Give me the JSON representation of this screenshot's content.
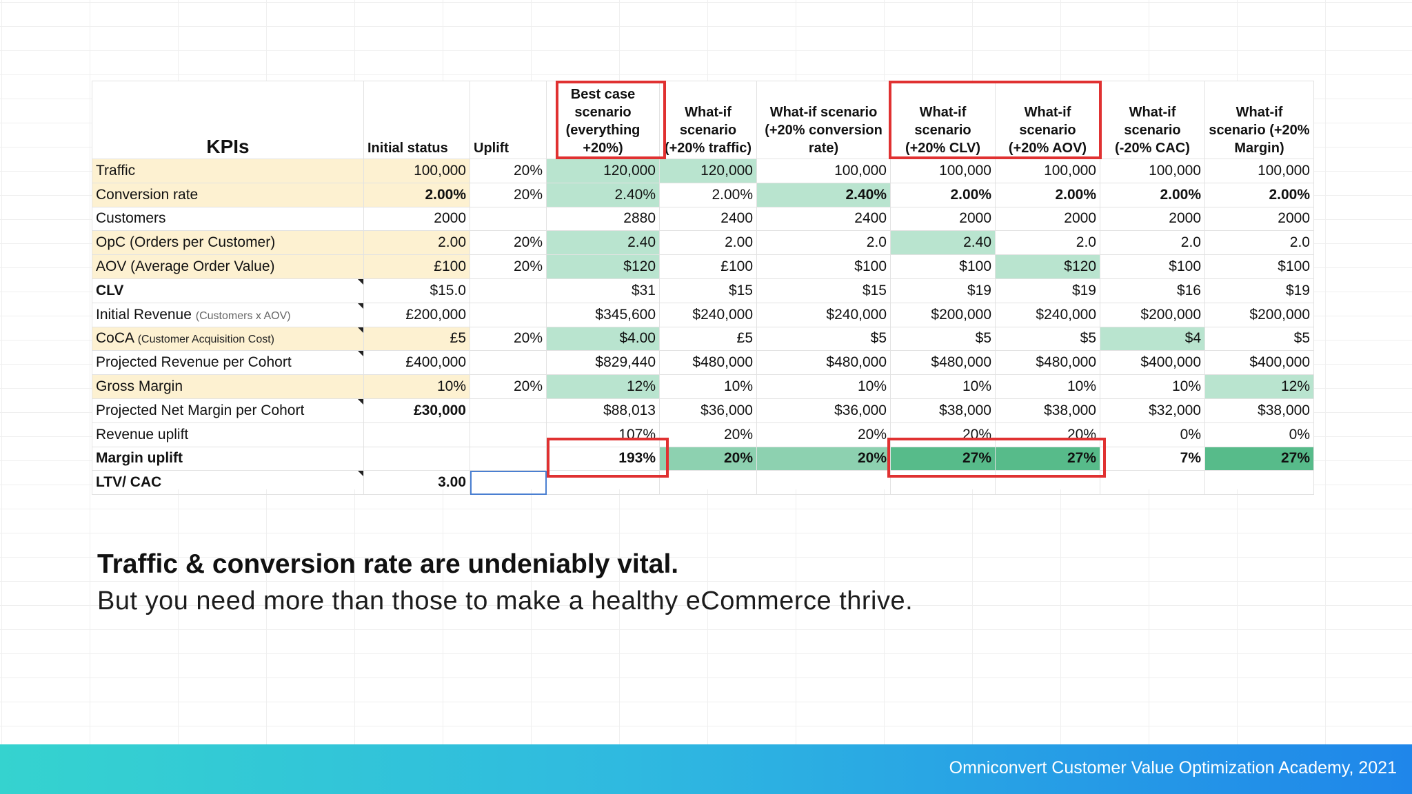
{
  "table": {
    "headers": [
      "KPIs",
      "Initial status",
      "Uplift",
      "Best case scenario (everything +20%)",
      "What-if scenario (+20% traffic)",
      "What-if scenario (+20% conversion rate)",
      "What-if scenario (+20% CLV)",
      "What-if scenario (+20% AOV)",
      "What-if scenario (-20% CAC)",
      "What-if scenario (+20% Margin)"
    ],
    "rows": [
      {
        "label": "Traffic",
        "note": "",
        "cells": [
          "100,000",
          "20%",
          "120,000",
          "120,000",
          "100,000",
          "100,000",
          "100,000",
          "100,000",
          "100,000"
        ]
      },
      {
        "label": "Conversion rate",
        "note": "",
        "cells": [
          "2.00%",
          "20%",
          "2.40%",
          "2.00%",
          "2.40%",
          "2.00%",
          "2.00%",
          "2.00%",
          "2.00%"
        ]
      },
      {
        "label": "Customers",
        "note": "",
        "cells": [
          "2000",
          "",
          "2880",
          "2400",
          "2400",
          "2000",
          "2000",
          "2000",
          "2000"
        ]
      },
      {
        "label": "OpC (Orders per Customer)",
        "note": "",
        "cells": [
          "2.00",
          "20%",
          "2.40",
          "2.00",
          "2.0",
          "2.40",
          "2.0",
          "2.0",
          "2.0"
        ]
      },
      {
        "label": "AOV (Average Order Value)",
        "note": "",
        "cells": [
          "£100",
          "20%",
          "$120",
          "£100",
          "$100",
          "$100",
          "$120",
          "$100",
          "$100"
        ]
      },
      {
        "label": "CLV",
        "note": "",
        "cells": [
          "$15.0",
          "",
          "$31",
          "$15",
          "$15",
          "$19",
          "$19",
          "$16",
          "$19"
        ]
      },
      {
        "label": "Initial Revenue",
        "note": "(Customers x AOV)",
        "cells": [
          "£200,000",
          "",
          "$345,600",
          "$240,000",
          "$240,000",
          "$200,000",
          "$240,000",
          "$200,000",
          "$200,000"
        ]
      },
      {
        "label": "CoCA",
        "note": "(Customer Acquisition Cost)",
        "cells": [
          "£5",
          "20%",
          "$4.00",
          "£5",
          "$5",
          "$5",
          "$5",
          "$4",
          "$5"
        ]
      },
      {
        "label": "Projected Revenue per Cohort",
        "note": "",
        "cells": [
          "£400,000",
          "",
          "$829,440",
          "$480,000",
          "$480,000",
          "$480,000",
          "$480,000",
          "$400,000",
          "$400,000"
        ]
      },
      {
        "label": "Gross Margin",
        "note": "",
        "cells": [
          "10%",
          "20%",
          "12%",
          "10%",
          "10%",
          "10%",
          "10%",
          "10%",
          "12%"
        ]
      },
      {
        "label": "Projected Net Margin per Cohort",
        "note": "",
        "cells": [
          "£30,000",
          "",
          "$88,013",
          "$36,000",
          "$36,000",
          "$38,000",
          "$38,000",
          "$32,000",
          "$38,000"
        ]
      },
      {
        "label": "Revenue uplift",
        "note": "",
        "cells": [
          "",
          "",
          "107%",
          "20%",
          "20%",
          "20%",
          "20%",
          "0%",
          "0%"
        ]
      },
      {
        "label": "Margin uplift",
        "note": "",
        "cells": [
          "",
          "",
          "193%",
          "20%",
          "20%",
          "27%",
          "27%",
          "7%",
          "27%"
        ]
      },
      {
        "label": "LTV/ CAC",
        "note": "",
        "cells": [
          "3.00",
          "",
          "",
          "",
          "",
          "",
          "",
          "",
          ""
        ]
      }
    ]
  },
  "caption": {
    "headline": "Traffic & conversion rate are undeniably vital.",
    "subline": "But you need more than those to make a healthy eCommerce thrive."
  },
  "footer": {
    "credit": "Omniconvert Customer Value Optimization Academy, 2021"
  },
  "colors": {
    "input_highlight": "#fdf1d1",
    "light_green": "#b9e4cf",
    "medium_green": "#8dd1b0",
    "strong_green": "#57bb8a",
    "annotation_red": "#e03131",
    "footer_gradient_start": "#35d3cf",
    "footer_gradient_end": "#1f86ea"
  }
}
